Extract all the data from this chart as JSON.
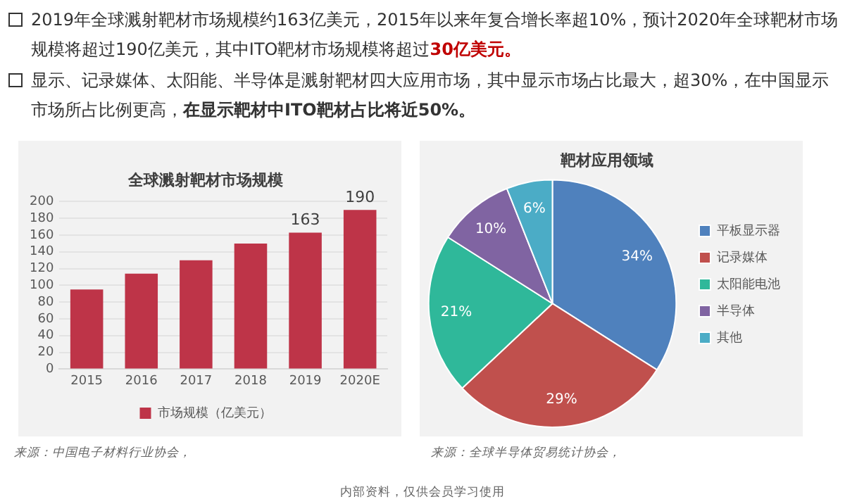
{
  "chart_data": [
    {
      "type": "bar",
      "title": "全球溅射靶材市场规模",
      "categories": [
        "2015",
        "2016",
        "2017",
        "2018",
        "2019",
        "2020E"
      ],
      "series": [
        {
          "name": "市场规模（亿美元）",
          "color": "#be3448",
          "values": [
            95,
            114,
            130,
            150,
            163,
            190
          ],
          "value_labels": [
            null,
            null,
            null,
            null,
            "163",
            "190"
          ]
        }
      ],
      "ylim": [
        0,
        200
      ],
      "yticks": [
        0,
        20,
        40,
        60,
        80,
        100,
        120,
        140,
        160,
        180,
        200
      ],
      "grid": "y",
      "legend": "bottom",
      "annotations": [
        "2019年全球溅射靶材市场规模约163亿美元，2015年以来年复合增长率超10%，预计2020年全球靶材市场规模将超过190亿美元，其中ITO靶材市场规模将超过",
        "30亿美元。",
        "显示、记录媒体、太阳能、半导体是溅射靶材四大应用市场，其中显示市场占比最大，超30%，在中国显示市场所占比例更高，",
        "在显示靶材中ITO靶材占比将近50%。",
        "来源：中国电子材料行业协会，"
      ]
    },
    {
      "type": "pie",
      "title": "靶材应用领域",
      "categories": [
        "平板显示器",
        "记录媒体",
        "太阳能电池",
        "半导体",
        "其他"
      ],
      "values": [
        34,
        29,
        21,
        10,
        6
      ],
      "colors": [
        "#4f81bd",
        "#c0504d",
        "#2fb89a",
        "#8064a2",
        "#4bacc6"
      ],
      "legend": "right",
      "value_labels": [
        "34%",
        "29%",
        "21%",
        "10%",
        "6%"
      ],
      "annotations": [
        "来源：全球半导体贸易统计协会，",
        "内部资料，仅供会员学习使用"
      ]
    }
  ]
}
